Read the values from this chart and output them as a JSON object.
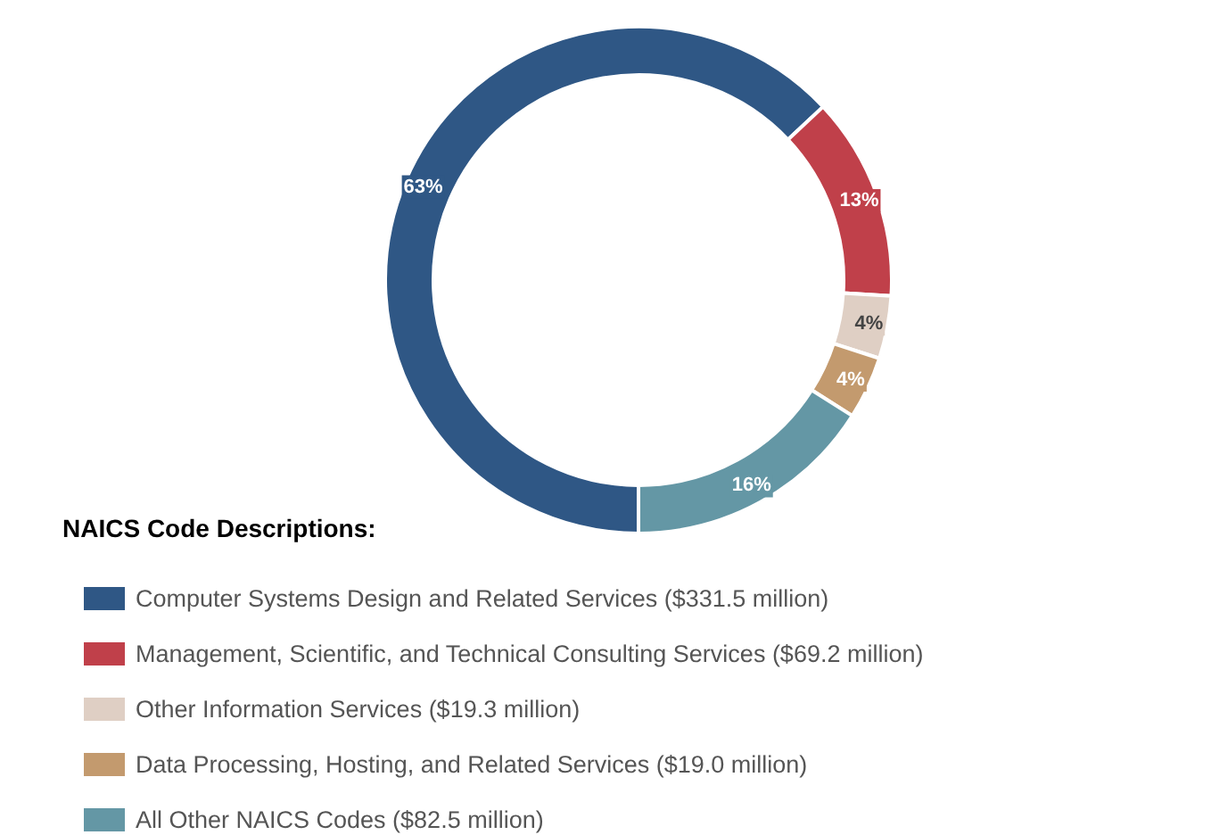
{
  "chart_data": {
    "type": "donut",
    "legend_title": "NAICS Code Descriptions:",
    "legend": "bottom left",
    "categories": [
      "Computer Systems Design and Related Services ($331.5 million)",
      "Management, Scientific, and Technical Consulting Services ($69.2 million)",
      "Other Information Services ($19.3 million)",
      "Data Processing, Hosting, and Related Services ($19.0 million)",
      "All Other NAICS Codes ($82.5 million)"
    ],
    "values": [
      63,
      13,
      4,
      4,
      16
    ],
    "value_labels": [
      "63%",
      "13%",
      "4%",
      "4%",
      "16%"
    ],
    "colors": [
      "#2f5785",
      "#c0404a",
      "#dfcfc4",
      "#c39a6e",
      "#6497a5"
    ]
  }
}
